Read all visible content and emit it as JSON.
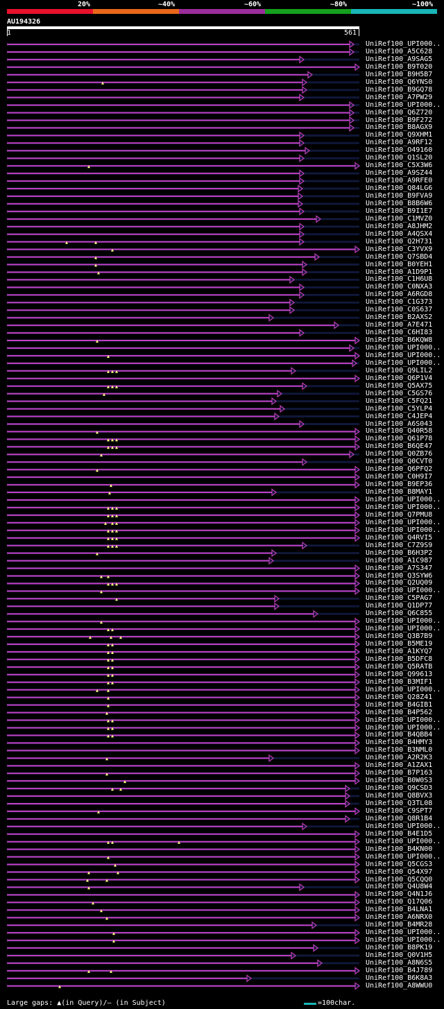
{
  "legend": {
    "labels": [
      "20%",
      "~40%",
      "~60%",
      "~80%",
      "~100%"
    ],
    "colors": [
      "#e8112d",
      "#e8671b",
      "#9b2d9b",
      "#14a01e",
      "#19b6b6"
    ]
  },
  "query": {
    "name": "AU194326",
    "start": "1",
    "end": "561",
    "length": 561
  },
  "hit_color": "#c040c0",
  "hits": [
    {
      "label": "UniRef100_UPI000..",
      "end": 504,
      "tri": []
    },
    {
      "label": "UniRef100_A5C628",
      "end": 504,
      "tri": []
    },
    {
      "label": "UniRef100_A9SAG5",
      "end": 432,
      "tri": []
    },
    {
      "label": "UniRef100_B9T020",
      "end": 512,
      "tri": []
    },
    {
      "label": "UniRef100_B9H5B7",
      "end": 444,
      "tri": []
    },
    {
      "label": "UniRef100_Q6YNS0",
      "end": 436,
      "tri": [
        148
      ]
    },
    {
      "label": "UniRef100_B9GQ78",
      "end": 436,
      "tri": []
    },
    {
      "label": "UniRef100_A7PW29",
      "end": 432,
      "tri": []
    },
    {
      "label": "UniRef100_UPI000..",
      "end": 504,
      "tri": []
    },
    {
      "label": "UniRef100_Q6Z720",
      "end": 504,
      "tri": []
    },
    {
      "label": "UniRef100_B9F272",
      "end": 504,
      "tri": []
    },
    {
      "label": "UniRef100_B8AGX9",
      "end": 504,
      "tri": []
    },
    {
      "label": "UniRef100_Q9XHM1",
      "end": 432,
      "tri": []
    },
    {
      "label": "UniRef100_A9RF12",
      "end": 432,
      "tri": []
    },
    {
      "label": "UniRef100_O49160",
      "end": 440,
      "tri": []
    },
    {
      "label": "UniRef100_Q1SL20",
      "end": 432,
      "tri": []
    },
    {
      "label": "UniRef100_C5X3W6",
      "end": 512,
      "tri": [
        128
      ]
    },
    {
      "label": "UniRef100_A9SZ44",
      "end": 432,
      "tri": []
    },
    {
      "label": "UniRef100_A9RFE0",
      "end": 432,
      "tri": []
    },
    {
      "label": "UniRef100_Q84LG6",
      "end": 430,
      "tri": []
    },
    {
      "label": "UniRef100_B9FVA9",
      "end": 430,
      "tri": []
    },
    {
      "label": "UniRef100_B8B6W6",
      "end": 430,
      "tri": []
    },
    {
      "label": "UniRef100_B9I1E7",
      "end": 432,
      "tri": []
    },
    {
      "label": "UniRef100_C1MVZ0",
      "end": 456,
      "tri": []
    },
    {
      "label": "UniRef100_A8JHM2",
      "end": 432,
      "tri": []
    },
    {
      "label": "UniRef100_A4QSX4",
      "end": 432,
      "tri": []
    },
    {
      "label": "UniRef100_Q2H731",
      "end": 432,
      "tri": [
        96,
        138
      ]
    },
    {
      "label": "UniRef100_C3YVX9",
      "end": 512,
      "tri": [
        162
      ]
    },
    {
      "label": "UniRef100_Q7SBD4",
      "end": 454,
      "tri": [
        138
      ]
    },
    {
      "label": "UniRef100_B0YEH1",
      "end": 436,
      "tri": [
        138
      ]
    },
    {
      "label": "UniRef100_A1D9P1",
      "end": 436,
      "tri": [
        142
      ]
    },
    {
      "label": "UniRef100_C1H6U8",
      "end": 418,
      "tri": []
    },
    {
      "label": "UniRef100_C0NXA3",
      "end": 432,
      "tri": []
    },
    {
      "label": "UniRef100_A6RGD8",
      "end": 432,
      "tri": []
    },
    {
      "label": "UniRef100_C1G373",
      "end": 418,
      "tri": []
    },
    {
      "label": "UniRef100_C0S637",
      "end": 418,
      "tri": []
    },
    {
      "label": "UniRef100_B2AXS2",
      "end": 388,
      "tri": []
    },
    {
      "label": "UniRef100_A7E471",
      "end": 482,
      "tri": []
    },
    {
      "label": "UniRef100_C6HI83",
      "end": 432,
      "tri": []
    },
    {
      "label": "UniRef100_B6KQW8",
      "end": 512,
      "tri": [
        140
      ]
    },
    {
      "label": "UniRef100_UPI000..",
      "end": 504,
      "tri": []
    },
    {
      "label": "UniRef100_UPI000..",
      "end": 512,
      "tri": [
        156
      ]
    },
    {
      "label": "UniRef100_UPI000..",
      "end": 508,
      "tri": []
    },
    {
      "label": "UniRef100_Q9LIL2",
      "end": 420,
      "tri": [
        156,
        162,
        168
      ]
    },
    {
      "label": "UniRef100_Q6P1V4",
      "end": 512,
      "tri": []
    },
    {
      "label": "UniRef100_Q5AX75",
      "end": 436,
      "tri": [
        156,
        162,
        168
      ]
    },
    {
      "label": "UniRef100_C5GS76",
      "end": 400,
      "tri": [
        150
      ]
    },
    {
      "label": "UniRef100_C5FQ21",
      "end": 392,
      "tri": []
    },
    {
      "label": "UniRef100_C5YLP4",
      "end": 404,
      "tri": []
    },
    {
      "label": "UniRef100_C4JEP4",
      "end": 396,
      "tri": []
    },
    {
      "label": "UniRef100_A6S043",
      "end": 432,
      "tri": []
    },
    {
      "label": "UniRef100_Q40R58",
      "end": 512,
      "tri": [
        140
      ]
    },
    {
      "label": "UniRef100_Q61P78",
      "end": 512,
      "tri": [
        156,
        162,
        168
      ]
    },
    {
      "label": "UniRef100_B6QE47",
      "end": 512,
      "tri": [
        156,
        162,
        168
      ]
    },
    {
      "label": "UniRef100_Q0ZB76",
      "end": 504,
      "tri": [
        146
      ]
    },
    {
      "label": "UniRef100_Q0CVT0",
      "end": 436,
      "tri": []
    },
    {
      "label": "UniRef100_Q6PFQ2",
      "end": 512,
      "tri": [
        140
      ]
    },
    {
      "label": "UniRef100_C0H9I7",
      "end": 512,
      "tri": []
    },
    {
      "label": "UniRef100_B9EP36",
      "end": 512,
      "tri": [
        160
      ]
    },
    {
      "label": "UniRef100_B8MAY1",
      "end": 392,
      "tri": [
        158
      ]
    },
    {
      "label": "UniRef100_UPI000..",
      "end": 512,
      "tri": []
    },
    {
      "label": "UniRef100_UPI000..",
      "end": 512,
      "tri": [
        156,
        162,
        168
      ]
    },
    {
      "label": "UniRef100_Q7PMU8",
      "end": 512,
      "tri": [
        156,
        162,
        168
      ]
    },
    {
      "label": "UniRef100_UPI000..",
      "end": 512,
      "tri": [
        152,
        162,
        168
      ]
    },
    {
      "label": "UniRef100_UPI000..",
      "end": 512,
      "tri": [
        156,
        162,
        168
      ]
    },
    {
      "label": "UniRef100_Q4RVI5",
      "end": 512,
      "tri": [
        156,
        162,
        168
      ]
    },
    {
      "label": "UniRef100_C7Z9S9",
      "end": 436,
      "tri": [
        156,
        162,
        168
      ]
    },
    {
      "label": "UniRef100_B6H3P2",
      "end": 392,
      "tri": [
        140
      ]
    },
    {
      "label": "UniRef100_A1C987",
      "end": 388,
      "tri": []
    },
    {
      "label": "UniRef100_A7S347",
      "end": 512,
      "tri": []
    },
    {
      "label": "UniRef100_Q3SYW6",
      "end": 512,
      "tri": [
        146,
        156
      ]
    },
    {
      "label": "UniRef100_Q2UQ09",
      "end": 512,
      "tri": [
        156,
        162,
        168
      ]
    },
    {
      "label": "UniRef100_UPI000..",
      "end": 512,
      "tri": [
        146
      ]
    },
    {
      "label": "UniRef100_C5PAG7",
      "end": 396,
      "tri": [
        168
      ]
    },
    {
      "label": "UniRef100_Q1DP77",
      "end": 396,
      "tri": []
    },
    {
      "label": "UniRef100_Q6C855",
      "end": 452,
      "tri": []
    },
    {
      "label": "UniRef100_UPI000..",
      "end": 512,
      "tri": [
        146
      ]
    },
    {
      "label": "UniRef100_UPI000..",
      "end": 512,
      "tri": [
        156,
        162
      ]
    },
    {
      "label": "UniRef100_Q3B7B9",
      "end": 512,
      "tri": [
        130,
        160,
        174
      ]
    },
    {
      "label": "UniRef100_B5ME19",
      "end": 512,
      "tri": [
        156,
        162
      ]
    },
    {
      "label": "UniRef100_A1KYQ7",
      "end": 512,
      "tri": [
        156,
        162
      ]
    },
    {
      "label": "UniRef100_B5DFC8",
      "end": 512,
      "tri": [
        156,
        162
      ]
    },
    {
      "label": "UniRef100_Q5RATB",
      "end": 512,
      "tri": [
        156,
        162
      ]
    },
    {
      "label": "UniRef100_Q99613",
      "end": 512,
      "tri": [
        156,
        162
      ]
    },
    {
      "label": "UniRef100_B3MIF1",
      "end": 512,
      "tri": [
        156,
        162
      ]
    },
    {
      "label": "UniRef100_UPI000..",
      "end": 512,
      "tri": [
        140,
        156
      ]
    },
    {
      "label": "UniRef100_Q28Z41",
      "end": 512,
      "tri": [
        156
      ]
    },
    {
      "label": "UniRef100_B4GIB1",
      "end": 512,
      "tri": [
        156
      ]
    },
    {
      "label": "UniRef100_B4P562",
      "end": 512,
      "tri": [
        154
      ]
    },
    {
      "label": "UniRef100_UPI000..",
      "end": 512,
      "tri": [
        156,
        162
      ]
    },
    {
      "label": "UniRef100_UPI000..",
      "end": 512,
      "tri": [
        156,
        162
      ]
    },
    {
      "label": "UniRef100_B4QBB4",
      "end": 512,
      "tri": [
        156,
        162
      ]
    },
    {
      "label": "UniRef100_B4HMY3",
      "end": 512,
      "tri": []
    },
    {
      "label": "UniRef100_B3NML0",
      "end": 512,
      "tri": []
    },
    {
      "label": "UniRef100_A2R2K3",
      "end": 388,
      "tri": [
        154
      ]
    },
    {
      "label": "UniRef100_A1ZAX1",
      "end": 512,
      "tri": []
    },
    {
      "label": "UniRef100_B7P163",
      "end": 512,
      "tri": [
        154
      ]
    },
    {
      "label": "UniRef100_B0W0S3",
      "end": 512,
      "tri": [
        180
      ]
    },
    {
      "label": "UniRef100_Q9CSD3",
      "end": 498,
      "tri": [
        162,
        174
      ]
    },
    {
      "label": "UniRef100_Q8BVX3",
      "end": 498,
      "tri": []
    },
    {
      "label": "UniRef100_Q3TL08",
      "end": 498,
      "tri": []
    },
    {
      "label": "UniRef100_C9SPT7",
      "end": 512,
      "tri": [
        142
      ]
    },
    {
      "label": "UniRef100_Q8R1B4",
      "end": 498,
      "tri": []
    },
    {
      "label": "UniRef100_UPI000..",
      "end": 436,
      "tri": []
    },
    {
      "label": "UniRef100_B4E1D5",
      "end": 512,
      "tri": []
    },
    {
      "label": "UniRef100_UPI000..",
      "end": 512,
      "tri": [
        156,
        162,
        258
      ]
    },
    {
      "label": "UniRef100_B4KN00",
      "end": 512,
      "tri": []
    },
    {
      "label": "UniRef100_UPI000..",
      "end": 512,
      "tri": [
        156
      ]
    },
    {
      "label": "UniRef100_Q5CGS3",
      "end": 512,
      "tri": [
        166
      ]
    },
    {
      "label": "UniRef100_Q54X97",
      "end": 512,
      "tri": [
        128,
        170
      ]
    },
    {
      "label": "UniRef100_Q5CQQ0",
      "end": 512,
      "tri": [
        126,
        154
      ]
    },
    {
      "label": "UniRef100_Q4U8W4",
      "end": 432,
      "tri": [
        128
      ]
    },
    {
      "label": "UniRef100_Q4N1J6",
      "end": 512,
      "tri": []
    },
    {
      "label": "UniRef100_Q17Q06",
      "end": 512,
      "tri": [
        134
      ]
    },
    {
      "label": "UniRef100_B4LNA1",
      "end": 512,
      "tri": [
        146
      ]
    },
    {
      "label": "UniRef100_A6NRX0",
      "end": 512,
      "tri": [
        154
      ]
    },
    {
      "label": "UniRef100_B4MR28",
      "end": 450,
      "tri": []
    },
    {
      "label": "UniRef100_UPI000..",
      "end": 512,
      "tri": [
        164
      ]
    },
    {
      "label": "UniRef100_UPI000..",
      "end": 512,
      "tri": [
        164
      ]
    },
    {
      "label": "UniRef100_B8PK19",
      "end": 452,
      "tri": []
    },
    {
      "label": "UniRef100_Q0V1H5",
      "end": 420,
      "tri": []
    },
    {
      "label": "UniRef100_A8N6S5",
      "end": 458,
      "tri": []
    },
    {
      "label": "UniRef100_B4J789",
      "end": 512,
      "tri": [
        128,
        160
      ]
    },
    {
      "label": "UniRef100_B6K8A3",
      "end": 356,
      "tri": []
    },
    {
      "label": "UniRef100_A8WWU0",
      "end": 512,
      "tri": [
        86
      ]
    }
  ],
  "footer": {
    "gaps_text": "Large gaps: ▲(in Query)/– (in Subject)",
    "scale_text": "=100char.",
    "scale_color": "#19b6b6"
  }
}
